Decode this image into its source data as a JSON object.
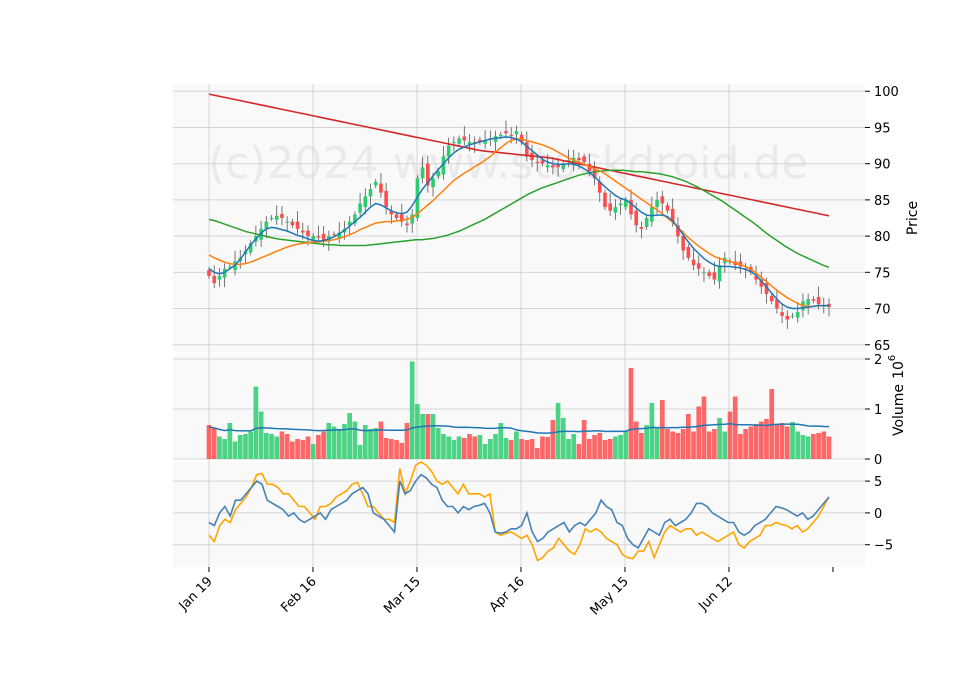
{
  "watermark": "(c)2024 www.stockdroid.de",
  "colors": {
    "up": "#2ecc71",
    "down": "#ff4d4d",
    "panel_bg": "#f9f9f9",
    "grid": "#d6d6d6",
    "ma_fast": "#1f77b4",
    "ma_mid": "#ff7f0e",
    "ma_slow": "#2ca02c",
    "ma_long": "#d62728",
    "vol_ma": "#1f77b4",
    "osc_a": "#4682b4",
    "osc_b": "#ffa500"
  },
  "chart_data": [
    {
      "type": "candlestick",
      "title": "",
      "ylabel": "Price",
      "ylim": [
        64,
        101
      ],
      "yticks": [
        "65",
        "70",
        "75",
        "80",
        "85",
        "90",
        "95",
        "100"
      ],
      "xticks": [
        "Jan 19",
        "Feb 16",
        "Mar 15",
        "Apr 16",
        "May 15",
        "Jun 12"
      ],
      "n": 120,
      "close_path": [
        74.5,
        73.5,
        74.5,
        75.5,
        75.8,
        76.5,
        77,
        78,
        79,
        80,
        81,
        82,
        82.5,
        82.8,
        82.5,
        82,
        81.5,
        81,
        80.5,
        80,
        80,
        79.8,
        79.5,
        80,
        80.2,
        80.5,
        81,
        82,
        83,
        84.5,
        85.5,
        86.5,
        87.5,
        86,
        84,
        83,
        82.5,
        82,
        81.5,
        83,
        88,
        89.5,
        87,
        88,
        89,
        91,
        92.5,
        93,
        93.5,
        93.2,
        93,
        92.8,
        93,
        93.2,
        93.5,
        93.8,
        94,
        94.2,
        93.8,
        94.5,
        93,
        91,
        90.5,
        90.2,
        90,
        89.8,
        89.5,
        89.5,
        90,
        90.5,
        90.8,
        90.5,
        90.2,
        89,
        88,
        86,
        84,
        83.5,
        84,
        84.5,
        85,
        83,
        81.5,
        81,
        82.5,
        84,
        85,
        84.5,
        83.5,
        82,
        80,
        78,
        77,
        76,
        75.5,
        75,
        74.5,
        74,
        76,
        77,
        76.5,
        76,
        75.8,
        75.5,
        75,
        74,
        73,
        72,
        71,
        70,
        69,
        68.5,
        69,
        69.5,
        71,
        71.3,
        71.1,
        70.6,
        70.4,
        70.2
      ],
      "ma_fast_path": [
        75.5,
        75,
        74.8,
        75,
        75.5,
        76,
        76.8,
        77.8,
        78.8,
        79.6,
        80.4,
        81,
        81.2,
        81.1,
        80.9,
        80.7,
        80.4,
        80.1,
        79.9,
        79.6,
        79.4,
        79.3,
        79.4,
        79.6,
        79.9,
        80.3,
        80.8,
        81.4,
        82,
        82.6,
        83.3,
        84,
        84.5,
        84.3,
        83.9,
        83.5,
        83.2,
        83.1,
        83.3,
        84.2,
        85.4,
        86.5,
        87.4,
        88.3,
        89.2,
        90,
        90.8,
        91.5,
        92,
        92.3,
        92.6,
        92.8,
        93,
        93.2,
        93.4,
        93.5,
        93.6,
        93.7,
        93.6,
        93.4,
        93,
        92.4,
        91.8,
        91.2,
        90.6,
        90.2,
        90,
        89.9,
        89.9,
        90,
        89.9,
        89.7,
        89.3,
        88.8,
        88.2,
        87.5,
        86.8,
        86.2,
        85.6,
        85.2,
        85,
        84.5,
        83.9,
        83.3,
        82.9,
        82.8,
        82.9,
        82.9,
        82.7,
        82.1,
        81.2,
        80.2,
        79.2,
        78.3,
        77.6,
        76.9,
        76.4,
        76,
        75.8,
        75.8,
        75.8,
        75.7,
        75.6,
        75.4,
        75.1,
        74.6,
        73.8,
        73,
        72.1,
        71.3,
        70.6,
        70.2,
        70,
        70,
        70.1,
        70.2,
        70.3,
        70.4,
        70.4,
        70.4
      ],
      "ma_mid_path": [
        77.4,
        77,
        76.7,
        76.4,
        76.2,
        76.1,
        76.1,
        76.2,
        76.4,
        76.7,
        77,
        77.3,
        77.6,
        77.9,
        78.2,
        78.5,
        78.7,
        78.9,
        79,
        79.1,
        79.2,
        79.2,
        79.3,
        79.4,
        79.5,
        79.7,
        79.9,
        80.2,
        80.5,
        80.9,
        81.2,
        81.5,
        81.8,
        81.9,
        82,
        82,
        82.1,
        82.2,
        82.3,
        82.6,
        83.1,
        83.7,
        84.3,
        84.9,
        85.6,
        86.3,
        87,
        87.7,
        88.2,
        88.7,
        89.1,
        89.6,
        90,
        90.5,
        91,
        91.6,
        92.2,
        92.8,
        93.2,
        93.4,
        93.4,
        93.2,
        93,
        92.8,
        92.6,
        92.3,
        92,
        91.6,
        91.2,
        90.8,
        90.5,
        90.2,
        89.9,
        89.6,
        89.3,
        89,
        88.6,
        88.1,
        87.6,
        87.1,
        86.6,
        86.1,
        85.6,
        85.1,
        84.6,
        84.1,
        83.6,
        83.1,
        82.5,
        81.9,
        81.2,
        80.5,
        79.8,
        79.2,
        78.6,
        78.1,
        77.6,
        77.2,
        76.9,
        76.7,
        76.5,
        76.3,
        76.1,
        75.8,
        75.4,
        74.9,
        74.3,
        73.7,
        73.1,
        72.5,
        72,
        71.5,
        71.1,
        70.7,
        70.4,
        70.3,
        70.3,
        70.4,
        70.4,
        70.4
      ],
      "ma_slow_path": [
        82.3,
        82.1,
        81.8,
        81.5,
        81.2,
        80.9,
        80.6,
        80.4,
        80.2,
        80,
        79.8,
        79.6,
        79.5,
        79.4,
        79.3,
        79.2,
        79.1,
        79,
        78.9,
        78.8,
        78.8,
        78.7,
        78.7,
        78.7,
        78.7,
        78.7,
        78.8,
        78.9,
        79,
        79.1,
        79.2,
        79.3,
        79.4,
        79.5,
        79.5,
        79.6,
        79.7,
        79.9,
        80.1,
        80.4,
        80.7,
        81.1,
        81.5,
        81.9,
        82.3,
        82.8,
        83.3,
        83.8,
        84.3,
        84.8,
        85.3,
        85.8,
        86.2,
        86.6,
        86.9,
        87.2,
        87.5,
        87.8,
        88.1,
        88.4,
        88.6,
        88.8,
        88.9,
        89,
        89.1,
        89.1,
        89.1,
        89,
        88.9,
        88.9,
        88.8,
        88.7,
        88.6,
        88.4,
        88.2,
        87.9,
        87.6,
        87.2,
        86.8,
        86.3,
        85.8,
        85.3,
        84.8,
        84.2,
        83.6,
        83,
        82.4,
        81.8,
        81.1,
        80.4,
        79.8,
        79.2,
        78.6,
        78.1,
        77.6,
        77.2,
        76.8,
        76.4,
        76,
        75.7
      ],
      "ma_long_path": [
        99.6,
        99.4,
        99.2,
        99,
        98.8,
        98.6,
        98.4,
        98.2,
        98,
        97.8,
        97.6,
        97.4,
        97.2,
        97,
        96.8,
        96.6,
        96.4,
        96.2,
        96,
        95.8,
        95.6,
        95.4,
        95.2,
        95,
        94.8,
        94.6,
        94.4,
        94.2,
        94,
        93.8,
        93.6,
        93.4,
        93.2,
        93,
        92.8,
        92.6,
        92.4,
        92.2,
        92,
        91.8,
        91.7,
        91.6,
        91.5,
        91.4,
        91.3,
        91.2,
        91.1,
        91,
        90.9,
        90.8,
        90.6,
        90.4,
        90.2,
        90,
        89.8,
        89.6,
        89.4,
        89.2,
        89,
        88.8,
        88.6,
        88.4,
        88.2,
        88,
        87.8,
        87.6,
        87.4,
        87.2,
        87,
        86.8,
        86.6,
        86.4,
        86.2,
        86,
        85.8,
        85.6,
        85.4,
        85.2,
        85,
        84.8,
        84.6,
        84.4,
        84.2,
        84,
        83.8,
        83.6,
        83.4,
        83.2,
        83,
        82.8
      ]
    },
    {
      "type": "bar",
      "ylabel": "Volume",
      "scale_label": "10",
      "scale_exp": "6",
      "ylim": [
        0,
        2
      ],
      "yticks": [
        "0",
        "1",
        "2"
      ],
      "volume_ma_level": 0.6,
      "volume_path": [
        0.68,
        0.62,
        0.45,
        0.4,
        0.72,
        0.35,
        0.48,
        0.5,
        0.55,
        1.45,
        0.95,
        0.52,
        0.5,
        0.45,
        0.55,
        0.5,
        0.35,
        0.4,
        0.38,
        0.45,
        0.3,
        0.48,
        0.55,
        0.72,
        0.65,
        0.6,
        0.7,
        0.92,
        0.75,
        0.28,
        0.68,
        0.6,
        0.62,
        0.75,
        0.42,
        0.4,
        0.38,
        0.32,
        0.72,
        1.95,
        1.1,
        0.9,
        0.9,
        0.9,
        0.62,
        0.5,
        0.45,
        0.38,
        0.45,
        0.42,
        0.5,
        0.45,
        0.48,
        0.3,
        0.4,
        0.5,
        0.72,
        0.42,
        0.38,
        0.55,
        0.4,
        0.38,
        0.4,
        0.22,
        0.45,
        0.44,
        0.78,
        1.12,
        0.82,
        0.4,
        0.5,
        0.3,
        0.78,
        0.4,
        0.48,
        0.52,
        0.38,
        0.4,
        0.45,
        0.48,
        0.55,
        1.82,
        0.75,
        0.52,
        0.68,
        1.12,
        0.62,
        1.18,
        0.6,
        0.55,
        0.52,
        0.6,
        0.9,
        0.55,
        1.05,
        1.25,
        0.55,
        0.6,
        0.82,
        0.55,
        0.95,
        1.25,
        0.5,
        0.6,
        0.65,
        0.7,
        0.75,
        0.8,
        1.4,
        0.7,
        0.72,
        0.65,
        0.74,
        0.55,
        0.48,
        0.45,
        0.5,
        0.52,
        0.55,
        0.45
      ]
    },
    {
      "type": "line",
      "ylim": [
        -8.5,
        8
      ],
      "yticks": [
        "−5",
        "0",
        "5"
      ],
      "series": [
        {
          "name": "osc_a",
          "values": [
            -1.5,
            -2,
            0,
            1,
            -0.5,
            2,
            2,
            3,
            4,
            5,
            4.5,
            2,
            1.5,
            1,
            0.5,
            -0.5,
            0,
            -1,
            -1.5,
            -1,
            -0.5,
            0,
            -1,
            0.5,
            1,
            1.5,
            2,
            3,
            3.5,
            4,
            3,
            0,
            -0.5,
            -1,
            -2,
            -3,
            5,
            3,
            3.5,
            5,
            6,
            5.5,
            4.5,
            4,
            2,
            1,
            1,
            0,
            1,
            0.5,
            1,
            1.2,
            1.5,
            0,
            -3,
            -3.2,
            -3,
            -2.5,
            -2.5,
            -2,
            0,
            -3,
            -4.5,
            -4,
            -3,
            -2.5,
            -2,
            -1.5,
            -3,
            -2,
            -1.5,
            -2,
            -1,
            0,
            2,
            1,
            0.5,
            -1.5,
            -2,
            -4,
            -5,
            -5.5,
            -4,
            -2.5,
            -3,
            -3.5,
            -1.5,
            -1,
            -2,
            -1.5,
            -1,
            0,
            1.5,
            1.5,
            1,
            0,
            -0.5,
            -1,
            -1.5,
            -1.5,
            -3,
            -3.5,
            -3,
            -2,
            -1.5,
            -1,
            0,
            1,
            0.8,
            0.5,
            0,
            -0.5,
            0,
            -1,
            -0.5,
            0.5,
            1.5,
            2.5
          ]
        },
        {
          "name": "osc_b",
          "values": [
            -3.5,
            -4.5,
            -2,
            -1,
            -1.5,
            0.5,
            1.5,
            2.5,
            4,
            6,
            6.2,
            4.5,
            4.5,
            4,
            3,
            3,
            2,
            1,
            1,
            0,
            -1,
            1,
            1,
            1.5,
            2.5,
            3,
            3.5,
            4.5,
            4.8,
            3,
            1,
            1,
            0,
            -1,
            -1,
            -1.5,
            7,
            3,
            5,
            7.5,
            8,
            7.5,
            6.5,
            5,
            4.5,
            5,
            4,
            3,
            4.5,
            3,
            3,
            3,
            2.5,
            3,
            -3,
            -3.5,
            -3.2,
            -3,
            -3.5,
            -4,
            -3.5,
            -5,
            -7.5,
            -7,
            -6,
            -5.5,
            -4,
            -5,
            -6,
            -6.5,
            -5,
            -2.5,
            -3,
            -2.5,
            -3,
            -4,
            -4.5,
            -5,
            -6.5,
            -7,
            -7.2,
            -6,
            -6,
            -4.5,
            -7,
            -5,
            -3,
            -2,
            -2.5,
            -3,
            -2.5,
            -2.5,
            -3.5,
            -3,
            -3.5,
            -4,
            -4.5,
            -4,
            -3.5,
            -3,
            -5,
            -5.5,
            -4.5,
            -4,
            -3.5,
            -2,
            -2,
            -1.5,
            -1.8,
            -2,
            -2.5,
            -2,
            -3,
            -2.5,
            -1.5,
            -0.5,
            1,
            2.5
          ]
        }
      ]
    }
  ]
}
